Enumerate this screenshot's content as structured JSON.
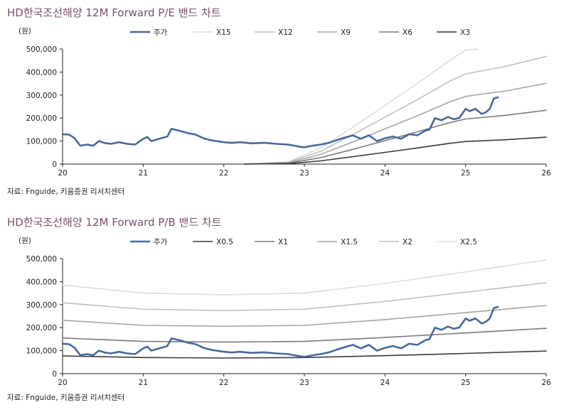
{
  "charts": [
    {
      "title": "HD한국조선해양 12M Forward P/E 밴드 차트",
      "source": "자료: Fnguide, 키움증권 리서치센터",
      "chart_data": {
        "type": "line",
        "ylabel": "(원)",
        "ylim": [
          0,
          500000
        ],
        "xlim": [
          20,
          26
        ],
        "yticks": [
          0,
          100000,
          200000,
          300000,
          400000,
          500000
        ],
        "ytick_labels": [
          "0",
          "100,000",
          "200,000",
          "300,000",
          "400,000",
          "500,000"
        ],
        "xticks": [
          20,
          21,
          22,
          23,
          24,
          25,
          26
        ],
        "xtick_labels": [
          "20",
          "21",
          "22",
          "23",
          "24",
          "25",
          "26"
        ],
        "legend_position": "top",
        "grid": false,
        "series": [
          {
            "name": "주가",
            "color": "#46699b",
            "width": 2.6,
            "points": [
              [
                20.0,
                130000
              ],
              [
                20.08,
                128000
              ],
              [
                20.15,
                112000
              ],
              [
                20.22,
                80000
              ],
              [
                20.3,
                85000
              ],
              [
                20.38,
                80000
              ],
              [
                20.45,
                100000
              ],
              [
                20.52,
                92000
              ],
              [
                20.6,
                88000
              ],
              [
                20.7,
                95000
              ],
              [
                20.8,
                88000
              ],
              [
                20.9,
                85000
              ],
              [
                21.0,
                110000
              ],
              [
                21.05,
                118000
              ],
              [
                21.1,
                100000
              ],
              [
                21.2,
                110000
              ],
              [
                21.3,
                120000
              ],
              [
                21.35,
                153000
              ],
              [
                21.45,
                145000
              ],
              [
                21.55,
                135000
              ],
              [
                21.65,
                128000
              ],
              [
                21.75,
                112000
              ],
              [
                21.85,
                103000
              ],
              [
                22.0,
                95000
              ],
              [
                22.1,
                92000
              ],
              [
                22.2,
                95000
              ],
              [
                22.35,
                90000
              ],
              [
                22.5,
                93000
              ],
              [
                22.65,
                88000
              ],
              [
                22.8,
                85000
              ],
              [
                22.95,
                75000
              ],
              [
                23.0,
                73000
              ],
              [
                23.1,
                80000
              ],
              [
                23.2,
                85000
              ],
              [
                23.3,
                92000
              ],
              [
                23.45,
                110000
              ],
              [
                23.6,
                125000
              ],
              [
                23.7,
                110000
              ],
              [
                23.8,
                125000
              ],
              [
                23.9,
                100000
              ],
              [
                24.0,
                112000
              ],
              [
                24.1,
                120000
              ],
              [
                24.2,
                110000
              ],
              [
                24.3,
                130000
              ],
              [
                24.4,
                125000
              ],
              [
                24.5,
                145000
              ],
              [
                24.55,
                150000
              ],
              [
                24.62,
                200000
              ],
              [
                24.7,
                190000
              ],
              [
                24.78,
                205000
              ],
              [
                24.85,
                195000
              ],
              [
                24.92,
                200000
              ],
              [
                25.0,
                240000
              ],
              [
                25.05,
                230000
              ],
              [
                25.12,
                240000
              ],
              [
                25.2,
                218000
              ],
              [
                25.25,
                225000
              ],
              [
                25.3,
                240000
              ],
              [
                25.35,
                285000
              ],
              [
                25.4,
                290000
              ]
            ]
          },
          {
            "name": "X15",
            "color": "#dddddd",
            "width": 1.6,
            "points": [
              [
                22.25,
                0
              ],
              [
                22.8,
                10000
              ],
              [
                23.2,
                70000
              ],
              [
                23.6,
                160000
              ],
              [
                24.0,
                255000
              ],
              [
                24.4,
                350000
              ],
              [
                24.8,
                450000
              ],
              [
                25.0,
                495000
              ],
              [
                25.15,
                500000
              ]
            ]
          },
          {
            "name": "X12",
            "color": "#c0c0c0",
            "width": 1.6,
            "points": [
              [
                22.25,
                0
              ],
              [
                22.8,
                8000
              ],
              [
                23.2,
                56000
              ],
              [
                23.6,
                128000
              ],
              [
                24.0,
                204000
              ],
              [
                24.4,
                280000
              ],
              [
                24.8,
                360000
              ],
              [
                25.0,
                392000
              ],
              [
                25.5,
                425000
              ],
              [
                26.0,
                468000
              ]
            ]
          },
          {
            "name": "X9",
            "color": "#a6a6a6",
            "width": 1.6,
            "points": [
              [
                22.25,
                0
              ],
              [
                22.8,
                6000
              ],
              [
                23.2,
                42000
              ],
              [
                23.6,
                96000
              ],
              [
                24.0,
                153000
              ],
              [
                24.4,
                210000
              ],
              [
                24.8,
                270000
              ],
              [
                25.0,
                294000
              ],
              [
                25.5,
                318000
              ],
              [
                26.0,
                351000
              ]
            ]
          },
          {
            "name": "X6",
            "color": "#7a7a7a",
            "width": 1.6,
            "points": [
              [
                22.25,
                0
              ],
              [
                22.8,
                4000
              ],
              [
                23.2,
                28000
              ],
              [
                23.6,
                64000
              ],
              [
                24.0,
                102000
              ],
              [
                24.4,
                140000
              ],
              [
                24.8,
                180000
              ],
              [
                25.0,
                196000
              ],
              [
                25.5,
                212000
              ],
              [
                26.0,
                234000
              ]
            ]
          },
          {
            "name": "X3",
            "color": "#3a3a3a",
            "width": 1.6,
            "points": [
              [
                22.25,
                0
              ],
              [
                22.8,
                2000
              ],
              [
                23.2,
                14000
              ],
              [
                23.6,
                32000
              ],
              [
                24.0,
                51000
              ],
              [
                24.4,
                70000
              ],
              [
                24.8,
                90000
              ],
              [
                25.0,
                98000
              ],
              [
                25.5,
                106000
              ],
              [
                26.0,
                117000
              ]
            ]
          }
        ]
      }
    },
    {
      "title": "HD한국조선해양 12M Forward P/B 밴드 차트",
      "source": "자료: Fnguide, 키움증권 리서치센터",
      "chart_data": {
        "type": "line",
        "ylabel": "(원)",
        "ylim": [
          0,
          500000
        ],
        "xlim": [
          20,
          26
        ],
        "yticks": [
          0,
          100000,
          200000,
          300000,
          400000,
          500000
        ],
        "ytick_labels": [
          "0",
          "100,000",
          "200,000",
          "300,000",
          "400,000",
          "500,000"
        ],
        "xticks": [
          20,
          21,
          22,
          23,
          24,
          25,
          26
        ],
        "xtick_labels": [
          "20",
          "21",
          "22",
          "23",
          "24",
          "25",
          "26"
        ],
        "legend_position": "top",
        "grid": false,
        "series": [
          {
            "name": "주가",
            "color": "#46699b",
            "width": 2.6,
            "points": [
              [
                20.0,
                130000
              ],
              [
                20.08,
                128000
              ],
              [
                20.15,
                112000
              ],
              [
                20.22,
                80000
              ],
              [
                20.3,
                85000
              ],
              [
                20.38,
                80000
              ],
              [
                20.45,
                100000
              ],
              [
                20.52,
                92000
              ],
              [
                20.6,
                88000
              ],
              [
                20.7,
                95000
              ],
              [
                20.8,
                88000
              ],
              [
                20.9,
                85000
              ],
              [
                21.0,
                110000
              ],
              [
                21.05,
                118000
              ],
              [
                21.1,
                100000
              ],
              [
                21.2,
                110000
              ],
              [
                21.3,
                120000
              ],
              [
                21.35,
                153000
              ],
              [
                21.45,
                145000
              ],
              [
                21.55,
                135000
              ],
              [
                21.65,
                128000
              ],
              [
                21.75,
                112000
              ],
              [
                21.85,
                103000
              ],
              [
                22.0,
                95000
              ],
              [
                22.1,
                92000
              ],
              [
                22.2,
                95000
              ],
              [
                22.35,
                90000
              ],
              [
                22.5,
                93000
              ],
              [
                22.65,
                88000
              ],
              [
                22.8,
                85000
              ],
              [
                22.95,
                75000
              ],
              [
                23.0,
                73000
              ],
              [
                23.1,
                80000
              ],
              [
                23.2,
                85000
              ],
              [
                23.3,
                92000
              ],
              [
                23.45,
                110000
              ],
              [
                23.6,
                125000
              ],
              [
                23.7,
                110000
              ],
              [
                23.8,
                125000
              ],
              [
                23.9,
                100000
              ],
              [
                24.0,
                112000
              ],
              [
                24.1,
                120000
              ],
              [
                24.2,
                110000
              ],
              [
                24.3,
                130000
              ],
              [
                24.4,
                125000
              ],
              [
                24.5,
                145000
              ],
              [
                24.55,
                150000
              ],
              [
                24.62,
                200000
              ],
              [
                24.7,
                190000
              ],
              [
                24.78,
                205000
              ],
              [
                24.85,
                195000
              ],
              [
                24.92,
                200000
              ],
              [
                25.0,
                240000
              ],
              [
                25.05,
                230000
              ],
              [
                25.12,
                240000
              ],
              [
                25.2,
                218000
              ],
              [
                25.25,
                225000
              ],
              [
                25.3,
                240000
              ],
              [
                25.35,
                285000
              ],
              [
                25.4,
                290000
              ]
            ]
          },
          {
            "name": "X0.5",
            "color": "#3a3a3a",
            "width": 1.6,
            "points": [
              [
                20.0,
                77000
              ],
              [
                21.0,
                70000
              ],
              [
                22.0,
                68000
              ],
              [
                23.0,
                70000
              ],
              [
                24.0,
                78000
              ],
              [
                25.0,
                88000
              ],
              [
                26.0,
                98000
              ]
            ]
          },
          {
            "name": "X1",
            "color": "#7a7a7a",
            "width": 1.6,
            "points": [
              [
                20.0,
                155000
              ],
              [
                21.0,
                140000
              ],
              [
                22.0,
                137000
              ],
              [
                23.0,
                140000
              ],
              [
                24.0,
                157000
              ],
              [
                25.0,
                177000
              ],
              [
                26.0,
                197000
              ]
            ]
          },
          {
            "name": "X1.5",
            "color": "#a6a6a6",
            "width": 1.6,
            "points": [
              [
                20.0,
                232000
              ],
              [
                21.0,
                210000
              ],
              [
                22.0,
                206000
              ],
              [
                23.0,
                210000
              ],
              [
                24.0,
                235000
              ],
              [
                25.0,
                265000
              ],
              [
                26.0,
                296000
              ]
            ]
          },
          {
            "name": "X2",
            "color": "#c0c0c0",
            "width": 1.6,
            "points": [
              [
                20.0,
                308000
              ],
              [
                21.0,
                280000
              ],
              [
                22.0,
                274000
              ],
              [
                23.0,
                280000
              ],
              [
                24.0,
                314000
              ],
              [
                25.0,
                354000
              ],
              [
                26.0,
                395000
              ]
            ]
          },
          {
            "name": "X2.5",
            "color": "#dddddd",
            "width": 1.6,
            "points": [
              [
                20.0,
                385000
              ],
              [
                21.0,
                350000
              ],
              [
                22.0,
                343000
              ],
              [
                23.0,
                350000
              ],
              [
                24.0,
                392000
              ],
              [
                25.0,
                442000
              ],
              [
                26.0,
                494000
              ]
            ]
          }
        ]
      }
    }
  ]
}
